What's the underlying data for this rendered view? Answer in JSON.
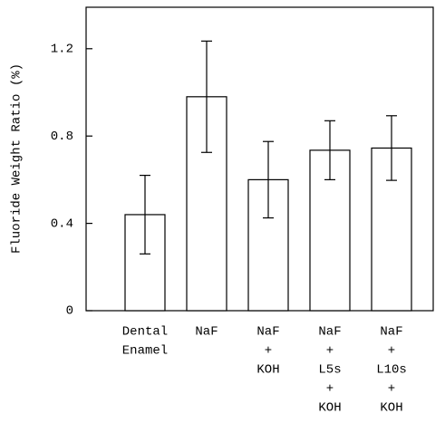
{
  "chart_data": {
    "type": "bar",
    "y_label": "Fluoride Weight Ratio (%)",
    "categories": [
      [
        "Dental",
        "Enamel"
      ],
      [
        "NaF"
      ],
      [
        "NaF",
        "+",
        "KOH"
      ],
      [
        "NaF",
        "+",
        "L5s",
        "+",
        "KOH"
      ],
      [
        "NaF",
        "+",
        "L10s",
        "+",
        "KOH"
      ]
    ],
    "values": [
      0.44,
      0.98,
      0.6,
      0.735,
      0.745
    ],
    "errors": [
      0.18,
      0.255,
      0.175,
      0.135,
      0.148
    ],
    "color": "#ffffff",
    "ylim": [
      0,
      1.39
    ],
    "yticks": [
      0,
      0.4,
      0.8,
      1.2
    ],
    "grid": false
  }
}
